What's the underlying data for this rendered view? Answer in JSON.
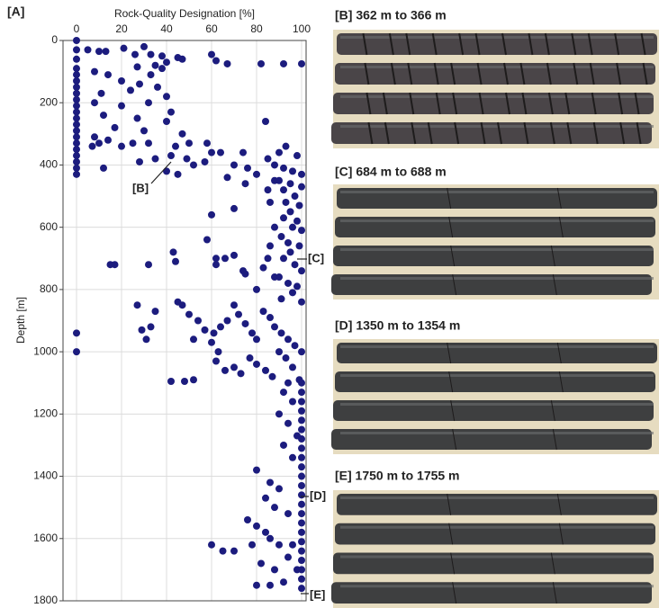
{
  "panel_label": "[A]",
  "chart_data": {
    "type": "scatter",
    "x_label": "Rock-Quality Designation [%]",
    "y_label": "Depth [m]",
    "color": "#1c1c7e",
    "grid": true,
    "invert_y": true,
    "xlim": [
      -6,
      102
    ],
    "xticks": [
      0,
      20,
      40,
      60,
      80,
      100
    ],
    "ylim": [
      0,
      1800
    ],
    "yticks": [
      0,
      200,
      400,
      600,
      800,
      1000,
      1200,
      1400,
      1600,
      1800
    ],
    "annotations": [
      "[B]",
      "[C]",
      "[D]",
      "[E]"
    ],
    "x": [
      0,
      0,
      0,
      0,
      0,
      0,
      0,
      0,
      0,
      0,
      0,
      0,
      0,
      0,
      0,
      0,
      0,
      0,
      0,
      0,
      0,
      0,
      0,
      5,
      10,
      13,
      21,
      26,
      30,
      33,
      38,
      45,
      47,
      60,
      62,
      67,
      82,
      92,
      100,
      40,
      35,
      38,
      27,
      8,
      14,
      20,
      28,
      33,
      36,
      24,
      40,
      11,
      8,
      20,
      32,
      42,
      12,
      27,
      40,
      84,
      17,
      30,
      47,
      8,
      14,
      25,
      7,
      10,
      20,
      32,
      44,
      50,
      58,
      60,
      64,
      74,
      90,
      93,
      98,
      85,
      28,
      35,
      42,
      49,
      52,
      57,
      12,
      40,
      45,
      70,
      76,
      80,
      88,
      92,
      96,
      100,
      90,
      95,
      100,
      92,
      97,
      93,
      99,
      95,
      92,
      98,
      96,
      100,
      91,
      94,
      99,
      95,
      92,
      97,
      100,
      90,
      94,
      98,
      96,
      91,
      100,
      86,
      88,
      85,
      83,
      75,
      60,
      70,
      58,
      62,
      66,
      70,
      74,
      62,
      80,
      86,
      88,
      43,
      44,
      32,
      15,
      17,
      88,
      85,
      75,
      67,
      27,
      35,
      45,
      47,
      50,
      54,
      57,
      61,
      64,
      67,
      70,
      72,
      75,
      78,
      80,
      83,
      86,
      88,
      91,
      94,
      97,
      100,
      29,
      31,
      33,
      52,
      60,
      63,
      66,
      70,
      73,
      62,
      42,
      48,
      52,
      77,
      80,
      84,
      87,
      90,
      93,
      96,
      99,
      94,
      100,
      100,
      100,
      100,
      100,
      100,
      100,
      100,
      100,
      100,
      100,
      100,
      100,
      100,
      100,
      100,
      100,
      100,
      100,
      100,
      100,
      100,
      100,
      92,
      96,
      90,
      94,
      98,
      92,
      96,
      80,
      86,
      90,
      84,
      88,
      94,
      76,
      80,
      84,
      86,
      90,
      60,
      65,
      70,
      78,
      82,
      88,
      94,
      80,
      92,
      86,
      96,
      98
    ],
    "values": [
      0,
      30,
      60,
      90,
      110,
      130,
      150,
      170,
      190,
      210,
      230,
      250,
      270,
      290,
      310,
      330,
      350,
      370,
      390,
      410,
      430,
      940,
      1000,
      30,
      35,
      35,
      25,
      45,
      20,
      45,
      50,
      55,
      60,
      45,
      65,
      75,
      75,
      75,
      75,
      70,
      80,
      90,
      85,
      100,
      110,
      130,
      140,
      110,
      150,
      160,
      180,
      170,
      200,
      210,
      200,
      230,
      240,
      250,
      260,
      260,
      280,
      290,
      300,
      310,
      320,
      330,
      340,
      330,
      340,
      330,
      340,
      330,
      330,
      360,
      360,
      360,
      360,
      340,
      370,
      380,
      390,
      380,
      370,
      380,
      400,
      390,
      410,
      420,
      430,
      400,
      410,
      430,
      400,
      410,
      420,
      430,
      450,
      460,
      470,
      480,
      500,
      520,
      530,
      550,
      570,
      580,
      600,
      610,
      630,
      650,
      660,
      680,
      700,
      720,
      740,
      760,
      780,
      790,
      810,
      830,
      840,
      520,
      600,
      700,
      730,
      750,
      560,
      540,
      640,
      700,
      700,
      690,
      740,
      720,
      800,
      660,
      760,
      680,
      710,
      720,
      720,
      720,
      450,
      480,
      460,
      440,
      850,
      870,
      840,
      850,
      880,
      900,
      930,
      940,
      920,
      900,
      850,
      880,
      910,
      940,
      960,
      870,
      890,
      920,
      940,
      960,
      980,
      1000,
      930,
      960,
      920,
      960,
      970,
      1000,
      1060,
      1050,
      1070,
      1030,
      1095,
      1095,
      1090,
      1020,
      1040,
      1060,
      1080,
      1000,
      1020,
      1050,
      1090,
      1100,
      1100,
      1130,
      1160,
      1190,
      1220,
      1250,
      1280,
      1310,
      1340,
      1370,
      1400,
      1430,
      1460,
      1490,
      1520,
      1550,
      1580,
      1610,
      1640,
      1670,
      1700,
      1730,
      1760,
      1130,
      1160,
      1200,
      1230,
      1270,
      1300,
      1340,
      1380,
      1420,
      1440,
      1470,
      1500,
      1520,
      1540,
      1560,
      1580,
      1600,
      1620,
      1620,
      1640,
      1640,
      1620,
      1680,
      1700,
      1660,
      1750,
      1740,
      1750,
      1620,
      1700
    ]
  },
  "photo_panels": [
    {
      "title": "[B] 362 m to 366 m"
    },
    {
      "title": "[C] 684 m to 688 m"
    },
    {
      "title": "[D] 1350 m to 1354 m"
    },
    {
      "title": "[E] 1750 m to 1755 m"
    }
  ]
}
